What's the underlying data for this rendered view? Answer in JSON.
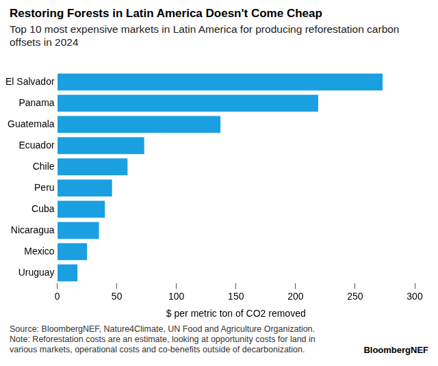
{
  "chart_data": {
    "type": "bar",
    "orientation": "horizontal",
    "title": "Restoring Forests in Latin America Doesn't Come Cheap",
    "subtitle": "Top 10 most expensive markets in Latin America for producing reforestation carbon offsets in 2024",
    "categories": [
      "El Salvador",
      "Panama",
      "Guatemala",
      "Ecuador",
      "Chile",
      "Peru",
      "Cuba",
      "Nicaragua",
      "Mexico",
      "Uruguay"
    ],
    "values": [
      273,
      219,
      137,
      73,
      59,
      46,
      40,
      35,
      25,
      17
    ],
    "color": "#1a9fe0",
    "xlim": [
      0,
      300
    ],
    "xticks": [
      0,
      50,
      100,
      150,
      200,
      250,
      300
    ],
    "x_label": "$ per metric ton of CO2 removed",
    "grid": false,
    "source": "Source: BloombergNEF, Nature4Climate, UN Food and Agriculture Organization.",
    "note": "Note: Reforestation costs are an estimate, looking at opportunity costs for land in various markets, operational costs and co-benefits outside of decarbonization.",
    "brand": "BloombergNEF"
  }
}
